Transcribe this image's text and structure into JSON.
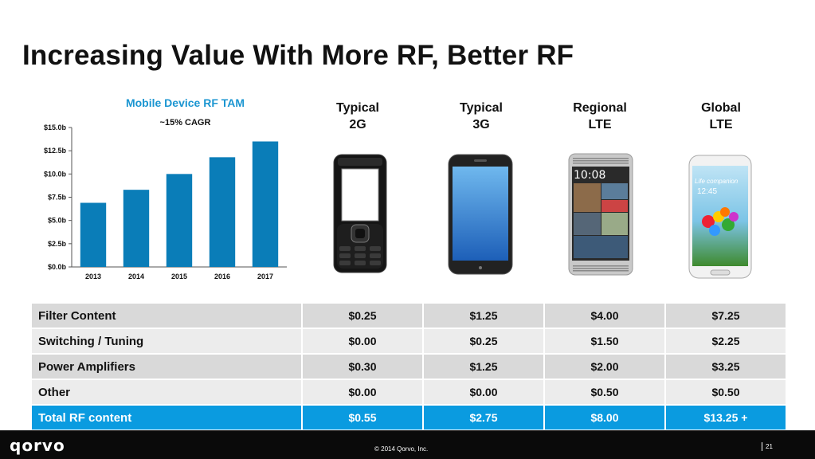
{
  "slide": {
    "title": "Increasing Value With More RF, Better RF"
  },
  "chart_data": {
    "type": "bar",
    "title": "Mobile Device RF TAM",
    "subtitle": "~15% CAGR",
    "categories": [
      "2013",
      "2014",
      "2015",
      "2016",
      "2017"
    ],
    "values": [
      6.9,
      8.3,
      10.0,
      11.8,
      13.5
    ],
    "ylim": [
      0,
      15
    ],
    "yticks": [
      "$0.0b",
      "$2.5b",
      "$5.0b",
      "$7.5b",
      "$10.0b",
      "$12.5b",
      "$15.0b"
    ],
    "ytick_values": [
      0,
      2.5,
      5,
      7.5,
      10,
      12.5,
      15
    ],
    "bar_color": "#0a7db8",
    "title_color": "#1a95d1"
  },
  "columns": [
    {
      "label": "Typical\n2G",
      "device": "feature-phone"
    },
    {
      "label": "Typical\n3G",
      "device": "smartphone"
    },
    {
      "label": "Regional\nLTE",
      "device": "htc-phone"
    },
    {
      "label": "Global\nLTE",
      "device": "galaxy-phone"
    }
  ],
  "htc_screen": {
    "time": "10:08"
  },
  "galaxy_screen": {
    "tagline": "Life companion",
    "time": "12:45"
  },
  "table": {
    "rows": [
      {
        "label": "Filter Content",
        "values": [
          "$0.25",
          "$1.25",
          "$4.00",
          "$7.25"
        ]
      },
      {
        "label": "Switching / Tuning",
        "values": [
          "$0.00",
          "$0.25",
          "$1.50",
          "$2.25"
        ]
      },
      {
        "label": "Power Amplifiers",
        "values": [
          "$0.30",
          "$1.25",
          "$2.00",
          "$3.25"
        ]
      },
      {
        "label": "Other",
        "values": [
          "$0.00",
          "$0.00",
          "$0.50",
          "$0.50"
        ]
      }
    ],
    "total": {
      "label": "Total RF content",
      "values": [
        "$0.55",
        "$2.75",
        "$8.00",
        "$13.25 +"
      ]
    },
    "accent_color": "#0a9be0"
  },
  "footer": {
    "logo": "qorvo",
    "copyright": "© 2014 Qorvo, Inc.",
    "page": "21"
  }
}
